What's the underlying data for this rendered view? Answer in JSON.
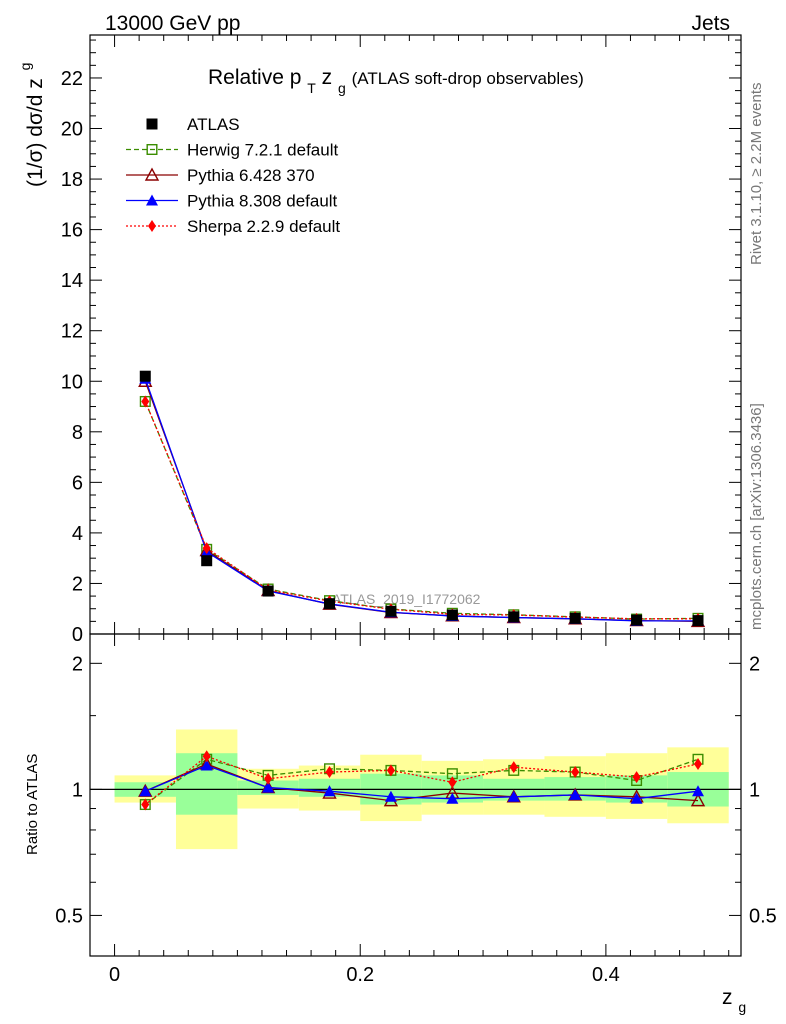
{
  "header": {
    "left": "13000 GeV pp",
    "right": "Jets"
  },
  "side": {
    "rivet": "Rivet 3.1.10, ≥ 2.2M events",
    "mcplots": "mcplots.cern.ch [arXiv:1306.3436]"
  },
  "title": {
    "main": "Relative p",
    "sub_t": "T",
    "zpart": " z",
    "sub_g": "g",
    "tail": " (ATLAS soft-drop observables)"
  },
  "watermark": "ATLAS_2019_I1772062",
  "ylabel_main": {
    "part1": "(1/σ) dσ/d z",
    "sub": "g"
  },
  "ylabel_ratio": "Ratio to ATLAS",
  "xlabel": {
    "main": "z",
    "sub": "g"
  },
  "colors": {
    "atlas": "#000000",
    "herwig": "#3a8d00",
    "pythia6": "#8b0000",
    "pythia8": "#0000ff",
    "sherpa": "#ff0000",
    "band_inner": "#99ff99",
    "band_outer": "#ffff99"
  },
  "chart_data": {
    "type": "scatter",
    "x": [
      0.025,
      0.075,
      0.125,
      0.175,
      0.225,
      0.275,
      0.325,
      0.375,
      0.425,
      0.475
    ],
    "bin_edges": [
      0,
      0.05,
      0.1,
      0.15,
      0.2,
      0.25,
      0.3,
      0.35,
      0.4,
      0.45,
      0.5
    ],
    "main": {
      "xlim": [
        -0.02,
        0.51
      ],
      "ylim": [
        0,
        23.7
      ],
      "yticks": [
        0,
        2,
        4,
        6,
        8,
        10,
        12,
        14,
        16,
        18,
        20,
        22
      ],
      "ytick_labels": [
        "0",
        "2",
        "4",
        "6",
        "8",
        "10",
        "12",
        "14",
        "16",
        "18",
        "20",
        "22"
      ]
    },
    "ratio": {
      "ylim": [
        0.4,
        2.35
      ],
      "log": true,
      "yticks": [
        0.5,
        1,
        2
      ],
      "ytick_labels": [
        "0.5",
        "1",
        "2"
      ],
      "band_inner": [
        [
          0.96,
          1.04
        ],
        [
          0.87,
          1.22
        ],
        [
          0.97,
          1.05
        ],
        [
          0.96,
          1.06
        ],
        [
          0.92,
          1.09
        ],
        [
          0.93,
          1.08
        ],
        [
          0.94,
          1.06
        ],
        [
          0.94,
          1.07
        ],
        [
          0.93,
          1.08
        ],
        [
          0.91,
          1.1
        ]
      ],
      "band_outer": [
        [
          0.93,
          1.08
        ],
        [
          0.72,
          1.39
        ],
        [
          0.9,
          1.12
        ],
        [
          0.89,
          1.14
        ],
        [
          0.84,
          1.21
        ],
        [
          0.87,
          1.17
        ],
        [
          0.87,
          1.18
        ],
        [
          0.86,
          1.2
        ],
        [
          0.85,
          1.22
        ],
        [
          0.83,
          1.26
        ]
      ]
    },
    "xticks": [
      0,
      0.2,
      0.4
    ],
    "xtick_labels": [
      "0",
      "0.2",
      "0.4"
    ],
    "series": [
      {
        "name": "ATLAS",
        "marker": "square-filled",
        "values": [
          10.2,
          2.9,
          1.7,
          1.2,
          0.9,
          0.75,
          0.68,
          0.62,
          0.55,
          0.53
        ],
        "ratio": [
          1,
          1,
          1,
          1,
          1,
          1,
          1,
          1,
          1,
          1
        ]
      },
      {
        "name": "Herwig 7.2.1 default",
        "marker": "square-open",
        "dash": "5,3",
        "values": [
          9.2,
          3.35,
          1.78,
          1.32,
          0.99,
          0.82,
          0.76,
          0.68,
          0.59,
          0.62
        ],
        "ratio": [
          0.92,
          1.18,
          1.08,
          1.12,
          1.11,
          1.09,
          1.11,
          1.1,
          1.05,
          1.18
        ]
      },
      {
        "name": "Pythia 6.428 370",
        "marker": "triangle-open",
        "dash": "",
        "values": [
          10.0,
          3.3,
          1.72,
          1.18,
          0.85,
          0.72,
          0.65,
          0.6,
          0.53,
          0.5
        ],
        "ratio": [
          0.99,
          1.15,
          1.01,
          0.98,
          0.94,
          0.98,
          0.96,
          0.97,
          0.96,
          0.94
        ]
      },
      {
        "name": "Pythia 8.308 default",
        "marker": "triangle-filled",
        "dash": "",
        "values": [
          10.1,
          3.25,
          1.7,
          1.19,
          0.86,
          0.71,
          0.65,
          0.6,
          0.52,
          0.52
        ],
        "ratio": [
          0.99,
          1.14,
          1.01,
          0.99,
          0.96,
          0.95,
          0.96,
          0.97,
          0.95,
          0.99
        ]
      },
      {
        "name": "Sherpa 2.2.9 default",
        "marker": "diamond-filled",
        "dash": "2,2",
        "values": [
          9.2,
          3.4,
          1.75,
          1.3,
          0.98,
          0.78,
          0.75,
          0.67,
          0.6,
          0.6
        ],
        "ratio": [
          0.92,
          1.2,
          1.06,
          1.1,
          1.11,
          1.04,
          1.13,
          1.1,
          1.07,
          1.15
        ]
      }
    ]
  }
}
